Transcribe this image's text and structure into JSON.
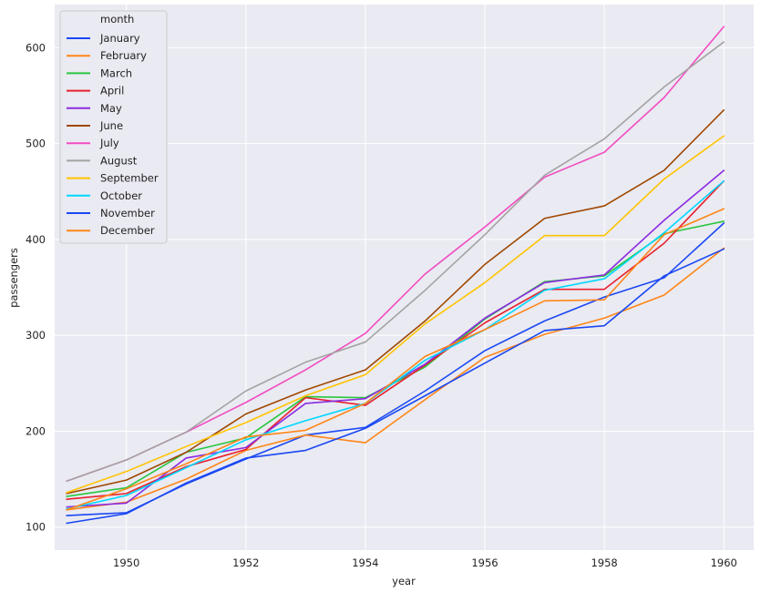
{
  "chart_data": {
    "type": "line",
    "xlabel": "year",
    "ylabel": "passengers",
    "xlim": [
      1948.8,
      1960.5
    ],
    "ylim": [
      76,
      645
    ],
    "x_ticks": [
      "1950",
      "1952",
      "1954",
      "1956",
      "1958",
      "1960"
    ],
    "y_ticks": [
      "100",
      "200",
      "300",
      "400",
      "500",
      "600"
    ],
    "grid": true,
    "legend": {
      "title": "month",
      "placement": "top-left"
    },
    "style": {
      "background": "#eaeaf2",
      "grid_color": "#ffffff"
    },
    "x": [
      1949,
      1950,
      1951,
      1952,
      1953,
      1954,
      1955,
      1956,
      1957,
      1958,
      1959,
      1960
    ],
    "series": [
      {
        "name": "January",
        "color": "#1a48f4",
        "values": [
          112,
          115,
          145,
          171,
          196,
          204,
          242,
          284,
          315,
          340,
          360,
          417
        ]
      },
      {
        "name": "February",
        "color": "#ff8617",
        "values": [
          118,
          126,
          150,
          180,
          196,
          188,
          233,
          277,
          301,
          318,
          342,
          391
        ]
      },
      {
        "name": "March",
        "color": "#2bc63f",
        "values": [
          132,
          141,
          178,
          193,
          236,
          235,
          267,
          317,
          356,
          362,
          406,
          419
        ]
      },
      {
        "name": "April",
        "color": "#e7212e",
        "values": [
          129,
          135,
          163,
          181,
          235,
          227,
          269,
          313,
          348,
          348,
          396,
          461
        ]
      },
      {
        "name": "May",
        "color": "#8b2be2",
        "values": [
          121,
          125,
          172,
          183,
          229,
          234,
          270,
          318,
          355,
          363,
          420,
          472
        ]
      },
      {
        "name": "June",
        "color": "#9f4800",
        "values": [
          135,
          149,
          178,
          218,
          243,
          264,
          315,
          374,
          422,
          435,
          472,
          535
        ]
      },
      {
        "name": "July",
        "color": "#f14cc1",
        "values": [
          148,
          170,
          199,
          230,
          264,
          302,
          364,
          413,
          465,
          491,
          548,
          622
        ]
      },
      {
        "name": "August",
        "color": "#a3a3a3",
        "values": [
          148,
          170,
          199,
          242,
          272,
          293,
          347,
          405,
          467,
          505,
          559,
          606
        ]
      },
      {
        "name": "September",
        "color": "#ffc400",
        "values": [
          136,
          158,
          184,
          209,
          237,
          259,
          312,
          355,
          404,
          404,
          463,
          508
        ]
      },
      {
        "name": "October",
        "color": "#00d7ff",
        "values": [
          119,
          133,
          162,
          191,
          211,
          229,
          274,
          306,
          347,
          359,
          407,
          461
        ]
      },
      {
        "name": "November",
        "color": "#1a48f4",
        "values": [
          104,
          114,
          146,
          172,
          180,
          203,
          237,
          271,
          305,
          310,
          362,
          390
        ]
      },
      {
        "name": "December",
        "color": "#ff8617",
        "values": [
          118,
          140,
          166,
          194,
          201,
          229,
          278,
          306,
          336,
          337,
          405,
          432
        ]
      }
    ]
  }
}
